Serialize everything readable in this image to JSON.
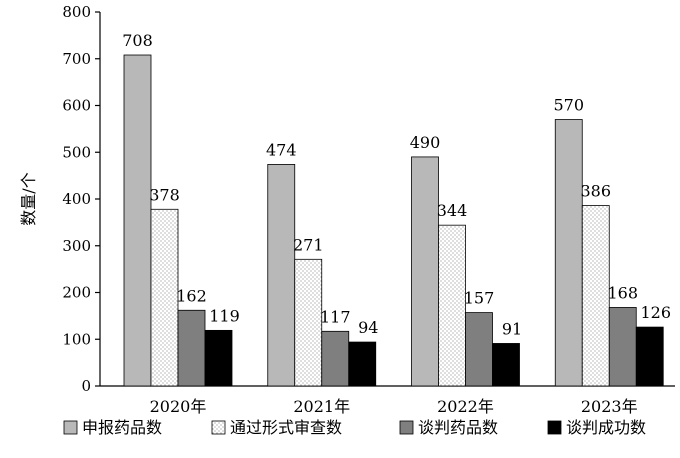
{
  "chart_data": {
    "type": "bar",
    "title": "",
    "xlabel": "",
    "ylabel": "数量/个",
    "ylim": [
      0,
      800
    ],
    "yticks": [
      0,
      100,
      200,
      300,
      400,
      500,
      600,
      700,
      800
    ],
    "grid": false,
    "legend_position": "bottom",
    "categories": [
      "2020年",
      "2021年",
      "2022年",
      "2023年"
    ],
    "series": [
      {
        "name": "申报药品数",
        "values": [
          708,
          474,
          490,
          570
        ],
        "color": "#b8b8b8",
        "pattern": "solid"
      },
      {
        "name": "通过形式审查数",
        "values": [
          378,
          271,
          344,
          386
        ],
        "color": "#ffffff",
        "pattern": "dots"
      },
      {
        "name": "谈判药品数",
        "values": [
          162,
          117,
          157,
          168
        ],
        "color": "#7f7f7f",
        "pattern": "solid"
      },
      {
        "name": "谈判成功数",
        "values": [
          119,
          94,
          91,
          126
        ],
        "color": "#000000",
        "pattern": "solid"
      }
    ]
  }
}
